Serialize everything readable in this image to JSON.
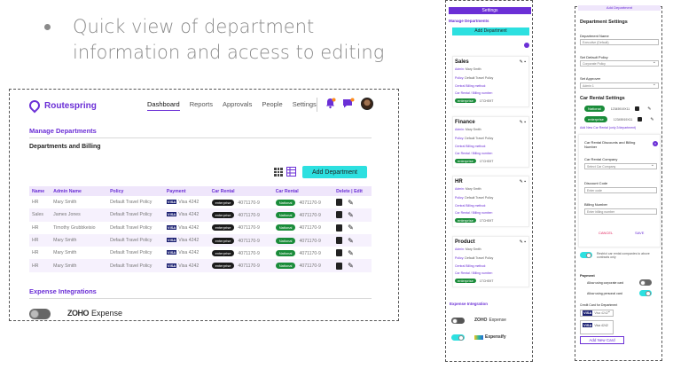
{
  "slide": {
    "bullet_line1": "Quick view of department",
    "bullet_line2": "information and access to editing"
  },
  "dashboard": {
    "brand": "Routespring",
    "nav": [
      "Dashboard",
      "Reports",
      "Approvals",
      "People",
      "Settings"
    ],
    "manage_title": "Manage Departments",
    "departments_title": "Departments and Billing",
    "add_button": "Add Department",
    "columns": [
      "Name",
      "Admin Name",
      "Policy",
      "Payment",
      "Car Rental",
      "Car Rental",
      "Delete | Edit"
    ],
    "rows": [
      {
        "name": "HR",
        "admin": "Mary Smith",
        "policy": "Default Travel Policy",
        "payment": "Visa 4242",
        "rental1": "enterprise",
        "rental2": "National",
        "code": "4071170-9"
      },
      {
        "name": "Sales",
        "admin": "James Jones",
        "policy": "Default Travel Policy",
        "payment": "Visa 4242",
        "rental1": "enterprise",
        "rental2": "National",
        "code": "4071170-9"
      },
      {
        "name": "HR",
        "admin": "Timothy Grubbkeisio",
        "policy": "Default Travel Policy",
        "payment": "Visa 4242",
        "rental1": "enterprise",
        "rental2": "National",
        "code": "4071170-9"
      },
      {
        "name": "HR",
        "admin": "Mary Smith",
        "policy": "Default Travel Policy",
        "payment": "Visa 4242",
        "rental1": "enterprise",
        "rental2": "National",
        "code": "4071170-9"
      },
      {
        "name": "HR",
        "admin": "Mary Smith",
        "policy": "Default Travel Policy",
        "payment": "Visa 4242",
        "rental1": "enterprise",
        "rental2": "National",
        "code": "4071170-9"
      },
      {
        "name": "HR",
        "admin": "Mary Smith",
        "policy": "Default Travel Policy",
        "payment": "Visa 4242",
        "rental1": "enterprise",
        "rental2": "National",
        "code": "4071170-9"
      }
    ],
    "expense_title": "Expense Integrations",
    "expense_app": "Expense",
    "expense_brand": "ZOHO"
  },
  "settings": {
    "title": "Settings",
    "manage": "Manage Departments",
    "add_button": "Add Department",
    "admin_label": "Admin:",
    "admin_value": "Mary Smith",
    "policy_label": "Policy:",
    "policy_value": "Default Travel Policy",
    "billing_label": "Central Billing method:",
    "rental_label": "Car Rental / Billing number:",
    "rental_code": "1TCHS9T",
    "departments": [
      "Sales",
      "Finance",
      "HR",
      "Product"
    ],
    "expense_title": "Expense Integration",
    "expense_apps": [
      "Expense",
      "Expensify"
    ],
    "expense_brand": "ZOHO"
  },
  "dept_settings": {
    "header": "Add Department",
    "title": "Department Settings",
    "name_label": "Department Name",
    "name_value": "Executive (Default)",
    "policy_label": "Set Default Policy",
    "policy_value": "Corporate Policy",
    "approver_label": "Set Approver",
    "approver_value": "Admin 1",
    "car_rental_title": "Car Rental Settings",
    "rental_brands": [
      "National",
      "enterprise"
    ],
    "rental_codes": [
      "12345919X11",
      "12345919X11"
    ],
    "add_rental_link": "Add New Car Rental (only 2/department)",
    "discount_title": "Car Rental Discounts and Billing Number",
    "company_label": "Car Rental Company",
    "company_placeholder": "Select Car Company",
    "discount_label": "Discount Code",
    "discount_placeholder": "Enter code",
    "billing_label": "Billing Number",
    "billing_placeholder": "Enter billing number",
    "cancel": "CANCEL",
    "save": "SAVE",
    "restrict_text": "Restrict car rental companies to above contracts only",
    "payment_title": "Payment",
    "corp_card": "Allow using corporate card",
    "personal_card": "Allow using personal card",
    "credit_label": "Credit Card for Department",
    "card_options": [
      "Visa 4242",
      "Visa 4242"
    ],
    "add_card": "Add New Card"
  },
  "colors": {
    "accent": "#6b2fd6",
    "cyan": "#2de0e0",
    "national": "#1a8c3a"
  }
}
